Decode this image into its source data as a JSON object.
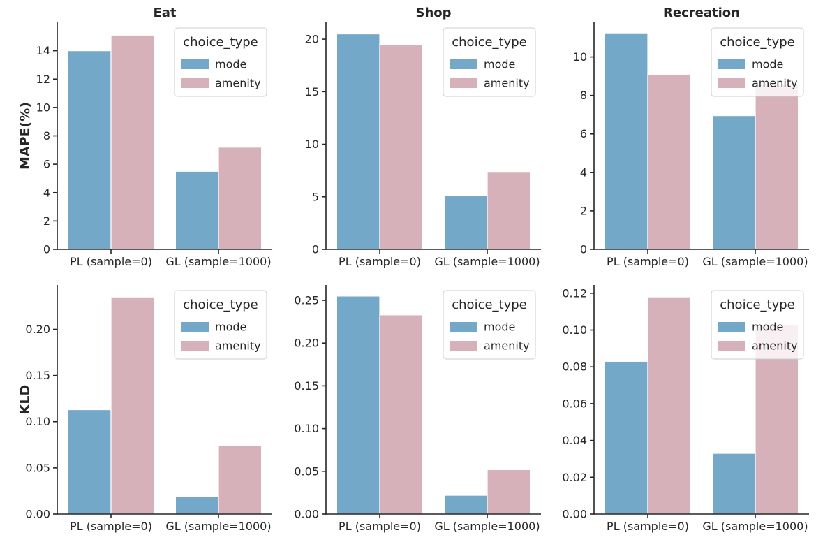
{
  "chart_data": [
    {
      "type": "bar",
      "title": "Eat",
      "ylabel": "MAPE(%)",
      "categories": [
        "PL (sample=0)",
        "GL (sample=1000)"
      ],
      "ylim": [
        0,
        16
      ],
      "yticks": [
        0,
        2,
        4,
        6,
        8,
        10,
        12,
        14
      ],
      "tick_decimals": 0,
      "legend": {
        "title": "choice_type",
        "placement": "top-right"
      },
      "series": [
        {
          "name": "mode",
          "color": "#74a8c9",
          "values": [
            14.0,
            5.5
          ]
        },
        {
          "name": "amenity",
          "color": "#d7b1b9",
          "values": [
            15.1,
            7.2
          ]
        }
      ]
    },
    {
      "type": "bar",
      "title": "Shop",
      "ylabel": "",
      "categories": [
        "PL (sample=0)",
        "GL (sample=1000)"
      ],
      "ylim": [
        0,
        21.6
      ],
      "yticks": [
        0,
        5,
        10,
        15,
        20
      ],
      "tick_decimals": 0,
      "legend": {
        "title": "choice_type",
        "placement": "top-right"
      },
      "series": [
        {
          "name": "mode",
          "color": "#74a8c9",
          "values": [
            20.5,
            5.1
          ]
        },
        {
          "name": "amenity",
          "color": "#d7b1b9",
          "values": [
            19.5,
            7.4
          ]
        }
      ]
    },
    {
      "type": "bar",
      "title": "Recreation",
      "ylabel": "",
      "categories": [
        "PL (sample=0)",
        "GL (sample=1000)"
      ],
      "ylim": [
        0,
        11.8
      ],
      "yticks": [
        0,
        2,
        4,
        6,
        8,
        10
      ],
      "tick_decimals": 0,
      "legend": {
        "title": "choice_type",
        "placement": "top-right"
      },
      "series": [
        {
          "name": "mode",
          "color": "#74a8c9",
          "values": [
            11.25,
            6.95
          ]
        },
        {
          "name": "amenity",
          "color": "#d7b1b9",
          "values": [
            9.1,
            8.6
          ]
        }
      ]
    },
    {
      "type": "bar",
      "title": "",
      "ylabel": "KLD",
      "categories": [
        "PL (sample=0)",
        "GL (sample=1000)"
      ],
      "ylim": [
        0,
        0.248
      ],
      "yticks": [
        0.0,
        0.05,
        0.1,
        0.15,
        0.2
      ],
      "tick_decimals": 2,
      "legend": {
        "title": "choice_type",
        "placement": "top-right"
      },
      "series": [
        {
          "name": "mode",
          "color": "#74a8c9",
          "values": [
            0.113,
            0.019
          ]
        },
        {
          "name": "amenity",
          "color": "#d7b1b9",
          "values": [
            0.235,
            0.074
          ]
        }
      ]
    },
    {
      "type": "bar",
      "title": "",
      "ylabel": "",
      "categories": [
        "PL (sample=0)",
        "GL (sample=1000)"
      ],
      "ylim": [
        0,
        0.268
      ],
      "yticks": [
        0.0,
        0.05,
        0.1,
        0.15,
        0.2,
        0.25
      ],
      "tick_decimals": 2,
      "legend": {
        "title": "choice_type",
        "placement": "top-right"
      },
      "series": [
        {
          "name": "mode",
          "color": "#74a8c9",
          "values": [
            0.255,
            0.022
          ]
        },
        {
          "name": "amenity",
          "color": "#d7b1b9",
          "values": [
            0.233,
            0.052
          ]
        }
      ]
    },
    {
      "type": "bar",
      "title": "",
      "ylabel": "",
      "categories": [
        "PL (sample=0)",
        "GL (sample=1000)"
      ],
      "ylim": [
        0,
        0.1245
      ],
      "yticks": [
        0.0,
        0.02,
        0.04,
        0.06,
        0.08,
        0.1,
        0.12
      ],
      "tick_decimals": 2,
      "legend": {
        "title": "choice_type",
        "placement": "top-right"
      },
      "series": [
        {
          "name": "mode",
          "color": "#74a8c9",
          "values": [
            0.083,
            0.033
          ]
        },
        {
          "name": "amenity",
          "color": "#d7b1b9",
          "values": [
            0.118,
            0.103
          ]
        }
      ]
    }
  ]
}
